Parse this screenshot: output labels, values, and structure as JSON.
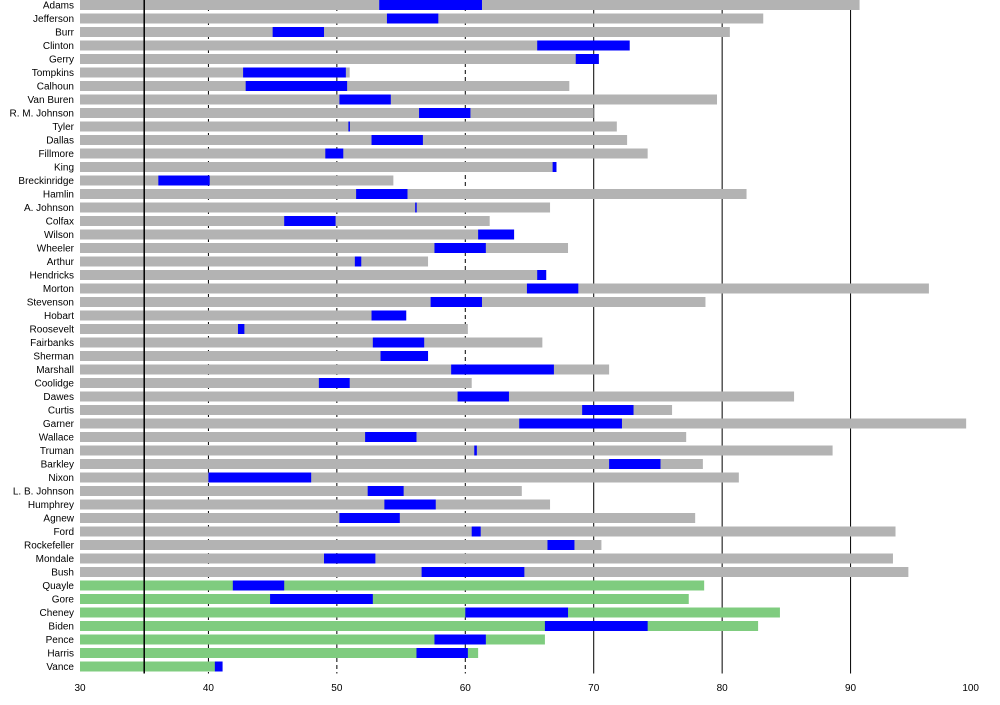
{
  "chart_data": {
    "type": "bar",
    "xlim": [
      30,
      100
    ],
    "x_ticks": [
      "30",
      "40",
      "50",
      "60",
      "70",
      "80",
      "90",
      "100"
    ],
    "reference_line": 35,
    "grid": "vertical dashed at 40, 50, 60; solid at 70, 80, 90",
    "colors": {
      "lifespan_past": "#b3b3b3",
      "lifespan_recent": "#7fcc7f",
      "in_office": "#0000ff",
      "reference": "#000000"
    },
    "rows": [
      {
        "name": "Adams",
        "life": [
          30,
          90.7
        ],
        "office": [
          53.3,
          61.3
        ],
        "group": "past"
      },
      {
        "name": "Jefferson",
        "life": [
          30,
          83.2
        ],
        "office": [
          53.9,
          57.9
        ],
        "group": "past"
      },
      {
        "name": "Burr",
        "life": [
          30,
          80.6
        ],
        "office": [
          45.0,
          49.0
        ],
        "group": "past"
      },
      {
        "name": "Clinton",
        "life": [
          30,
          72.8
        ],
        "office": [
          65.6,
          72.8
        ],
        "group": "past"
      },
      {
        "name": "Gerry",
        "life": [
          30,
          70.4
        ],
        "office": [
          68.6,
          70.4
        ],
        "group": "past"
      },
      {
        "name": "Tompkins",
        "life": [
          30,
          51.0
        ],
        "office": [
          42.7,
          50.7
        ],
        "group": "past"
      },
      {
        "name": "Calhoun",
        "life": [
          30,
          68.1
        ],
        "office": [
          42.9,
          50.8
        ],
        "group": "past"
      },
      {
        "name": "Van Buren",
        "life": [
          30,
          79.6
        ],
        "office": [
          50.2,
          54.2
        ],
        "group": "past"
      },
      {
        "name": "R. M. Johnson",
        "life": [
          30,
          70.0
        ],
        "office": [
          56.4,
          60.4
        ],
        "group": "past"
      },
      {
        "name": "Tyler",
        "life": [
          30,
          71.8
        ],
        "office": [
          50.9,
          51.0
        ],
        "group": "past"
      },
      {
        "name": "Dallas",
        "life": [
          30,
          72.6
        ],
        "office": [
          52.7,
          56.7
        ],
        "group": "past"
      },
      {
        "name": "Fillmore",
        "life": [
          30,
          74.2
        ],
        "office": [
          49.1,
          50.5
        ],
        "group": "past"
      },
      {
        "name": "King",
        "life": [
          30,
          67.1
        ],
        "office": [
          66.8,
          67.1
        ],
        "group": "past"
      },
      {
        "name": "Breckinridge",
        "life": [
          30,
          54.4
        ],
        "office": [
          36.1,
          40.1
        ],
        "group": "past"
      },
      {
        "name": "Hamlin",
        "life": [
          30,
          81.9
        ],
        "office": [
          51.5,
          55.5
        ],
        "group": "past"
      },
      {
        "name": "A. Johnson",
        "life": [
          30,
          66.6
        ],
        "office": [
          56.1,
          56.2
        ],
        "group": "past"
      },
      {
        "name": "Colfax",
        "life": [
          30,
          61.9
        ],
        "office": [
          45.9,
          49.9
        ],
        "group": "past"
      },
      {
        "name": "Wilson",
        "life": [
          30,
          63.8
        ],
        "office": [
          61.0,
          63.8
        ],
        "group": "past"
      },
      {
        "name": "Wheeler",
        "life": [
          30,
          68.0
        ],
        "office": [
          57.6,
          61.6
        ],
        "group": "past"
      },
      {
        "name": "Arthur",
        "life": [
          30,
          57.1
        ],
        "office": [
          51.4,
          51.9
        ],
        "group": "past"
      },
      {
        "name": "Hendricks",
        "life": [
          30,
          66.3
        ],
        "office": [
          65.6,
          66.3
        ],
        "group": "past"
      },
      {
        "name": "Morton",
        "life": [
          30,
          96.1
        ],
        "office": [
          64.8,
          68.8
        ],
        "group": "past"
      },
      {
        "name": "Stevenson",
        "life": [
          30,
          78.7
        ],
        "office": [
          57.3,
          61.3
        ],
        "group": "past"
      },
      {
        "name": "Hobart",
        "life": [
          30,
          55.4
        ],
        "office": [
          52.7,
          55.4
        ],
        "group": "past"
      },
      {
        "name": "Roosevelt",
        "life": [
          30,
          60.2
        ],
        "office": [
          42.3,
          42.8
        ],
        "group": "past"
      },
      {
        "name": "Fairbanks",
        "life": [
          30,
          66.0
        ],
        "office": [
          52.8,
          56.8
        ],
        "group": "past"
      },
      {
        "name": "Sherman",
        "life": [
          30,
          57.1
        ],
        "office": [
          53.4,
          57.1
        ],
        "group": "past"
      },
      {
        "name": "Marshall",
        "life": [
          30,
          71.2
        ],
        "office": [
          58.9,
          66.9
        ],
        "group": "past"
      },
      {
        "name": "Coolidge",
        "life": [
          30,
          60.5
        ],
        "office": [
          48.6,
          51.0
        ],
        "group": "past"
      },
      {
        "name": "Dawes",
        "life": [
          30,
          85.6
        ],
        "office": [
          59.4,
          63.4
        ],
        "group": "past"
      },
      {
        "name": "Curtis",
        "life": [
          30,
          76.1
        ],
        "office": [
          69.1,
          73.1
        ],
        "group": "past"
      },
      {
        "name": "Garner",
        "life": [
          30,
          99.0
        ],
        "office": [
          64.2,
          72.2
        ],
        "group": "past"
      },
      {
        "name": "Wallace",
        "life": [
          30,
          77.2
        ],
        "office": [
          52.2,
          56.2
        ],
        "group": "past"
      },
      {
        "name": "Truman",
        "life": [
          30,
          88.6
        ],
        "office": [
          60.7,
          60.9
        ],
        "group": "past"
      },
      {
        "name": "Barkley",
        "life": [
          30,
          78.5
        ],
        "office": [
          71.2,
          75.2
        ],
        "group": "past"
      },
      {
        "name": "Nixon",
        "life": [
          30,
          81.3
        ],
        "office": [
          40.0,
          48.0
        ],
        "group": "past"
      },
      {
        "name": "L. B. Johnson",
        "life": [
          30,
          64.4
        ],
        "office": [
          52.4,
          55.2
        ],
        "group": "past"
      },
      {
        "name": "Humphrey",
        "life": [
          30,
          66.6
        ],
        "office": [
          53.7,
          57.7
        ],
        "group": "past"
      },
      {
        "name": "Agnew",
        "life": [
          30,
          77.9
        ],
        "office": [
          50.2,
          54.9
        ],
        "group": "past"
      },
      {
        "name": "Ford",
        "life": [
          30,
          93.5
        ],
        "office": [
          60.5,
          61.2
        ],
        "group": "past"
      },
      {
        "name": "Rockefeller",
        "life": [
          30,
          70.6
        ],
        "office": [
          66.4,
          68.5
        ],
        "group": "past"
      },
      {
        "name": "Mondale",
        "life": [
          30,
          93.3
        ],
        "office": [
          49.0,
          53.0
        ],
        "group": "past"
      },
      {
        "name": "Bush",
        "life": [
          30,
          94.5
        ],
        "office": [
          56.6,
          64.6
        ],
        "group": "past"
      },
      {
        "name": "Quayle",
        "life": [
          30,
          78.6
        ],
        "office": [
          41.9,
          45.9
        ],
        "group": "recent"
      },
      {
        "name": "Gore",
        "life": [
          30,
          77.4
        ],
        "office": [
          44.8,
          52.8
        ],
        "group": "recent"
      },
      {
        "name": "Cheney",
        "life": [
          30,
          84.5
        ],
        "office": [
          60.0,
          68.0
        ],
        "group": "recent"
      },
      {
        "name": "Biden",
        "life": [
          30,
          82.8
        ],
        "office": [
          66.2,
          74.2
        ],
        "group": "recent"
      },
      {
        "name": "Pence",
        "life": [
          30,
          66.2
        ],
        "office": [
          57.6,
          61.6
        ],
        "group": "recent"
      },
      {
        "name": "Harris",
        "life": [
          30,
          61.0
        ],
        "office": [
          56.2,
          60.2
        ],
        "group": "recent"
      },
      {
        "name": "Vance",
        "life": [
          30,
          41.1
        ],
        "office": [
          40.5,
          41.1
        ],
        "group": "recent"
      }
    ]
  }
}
